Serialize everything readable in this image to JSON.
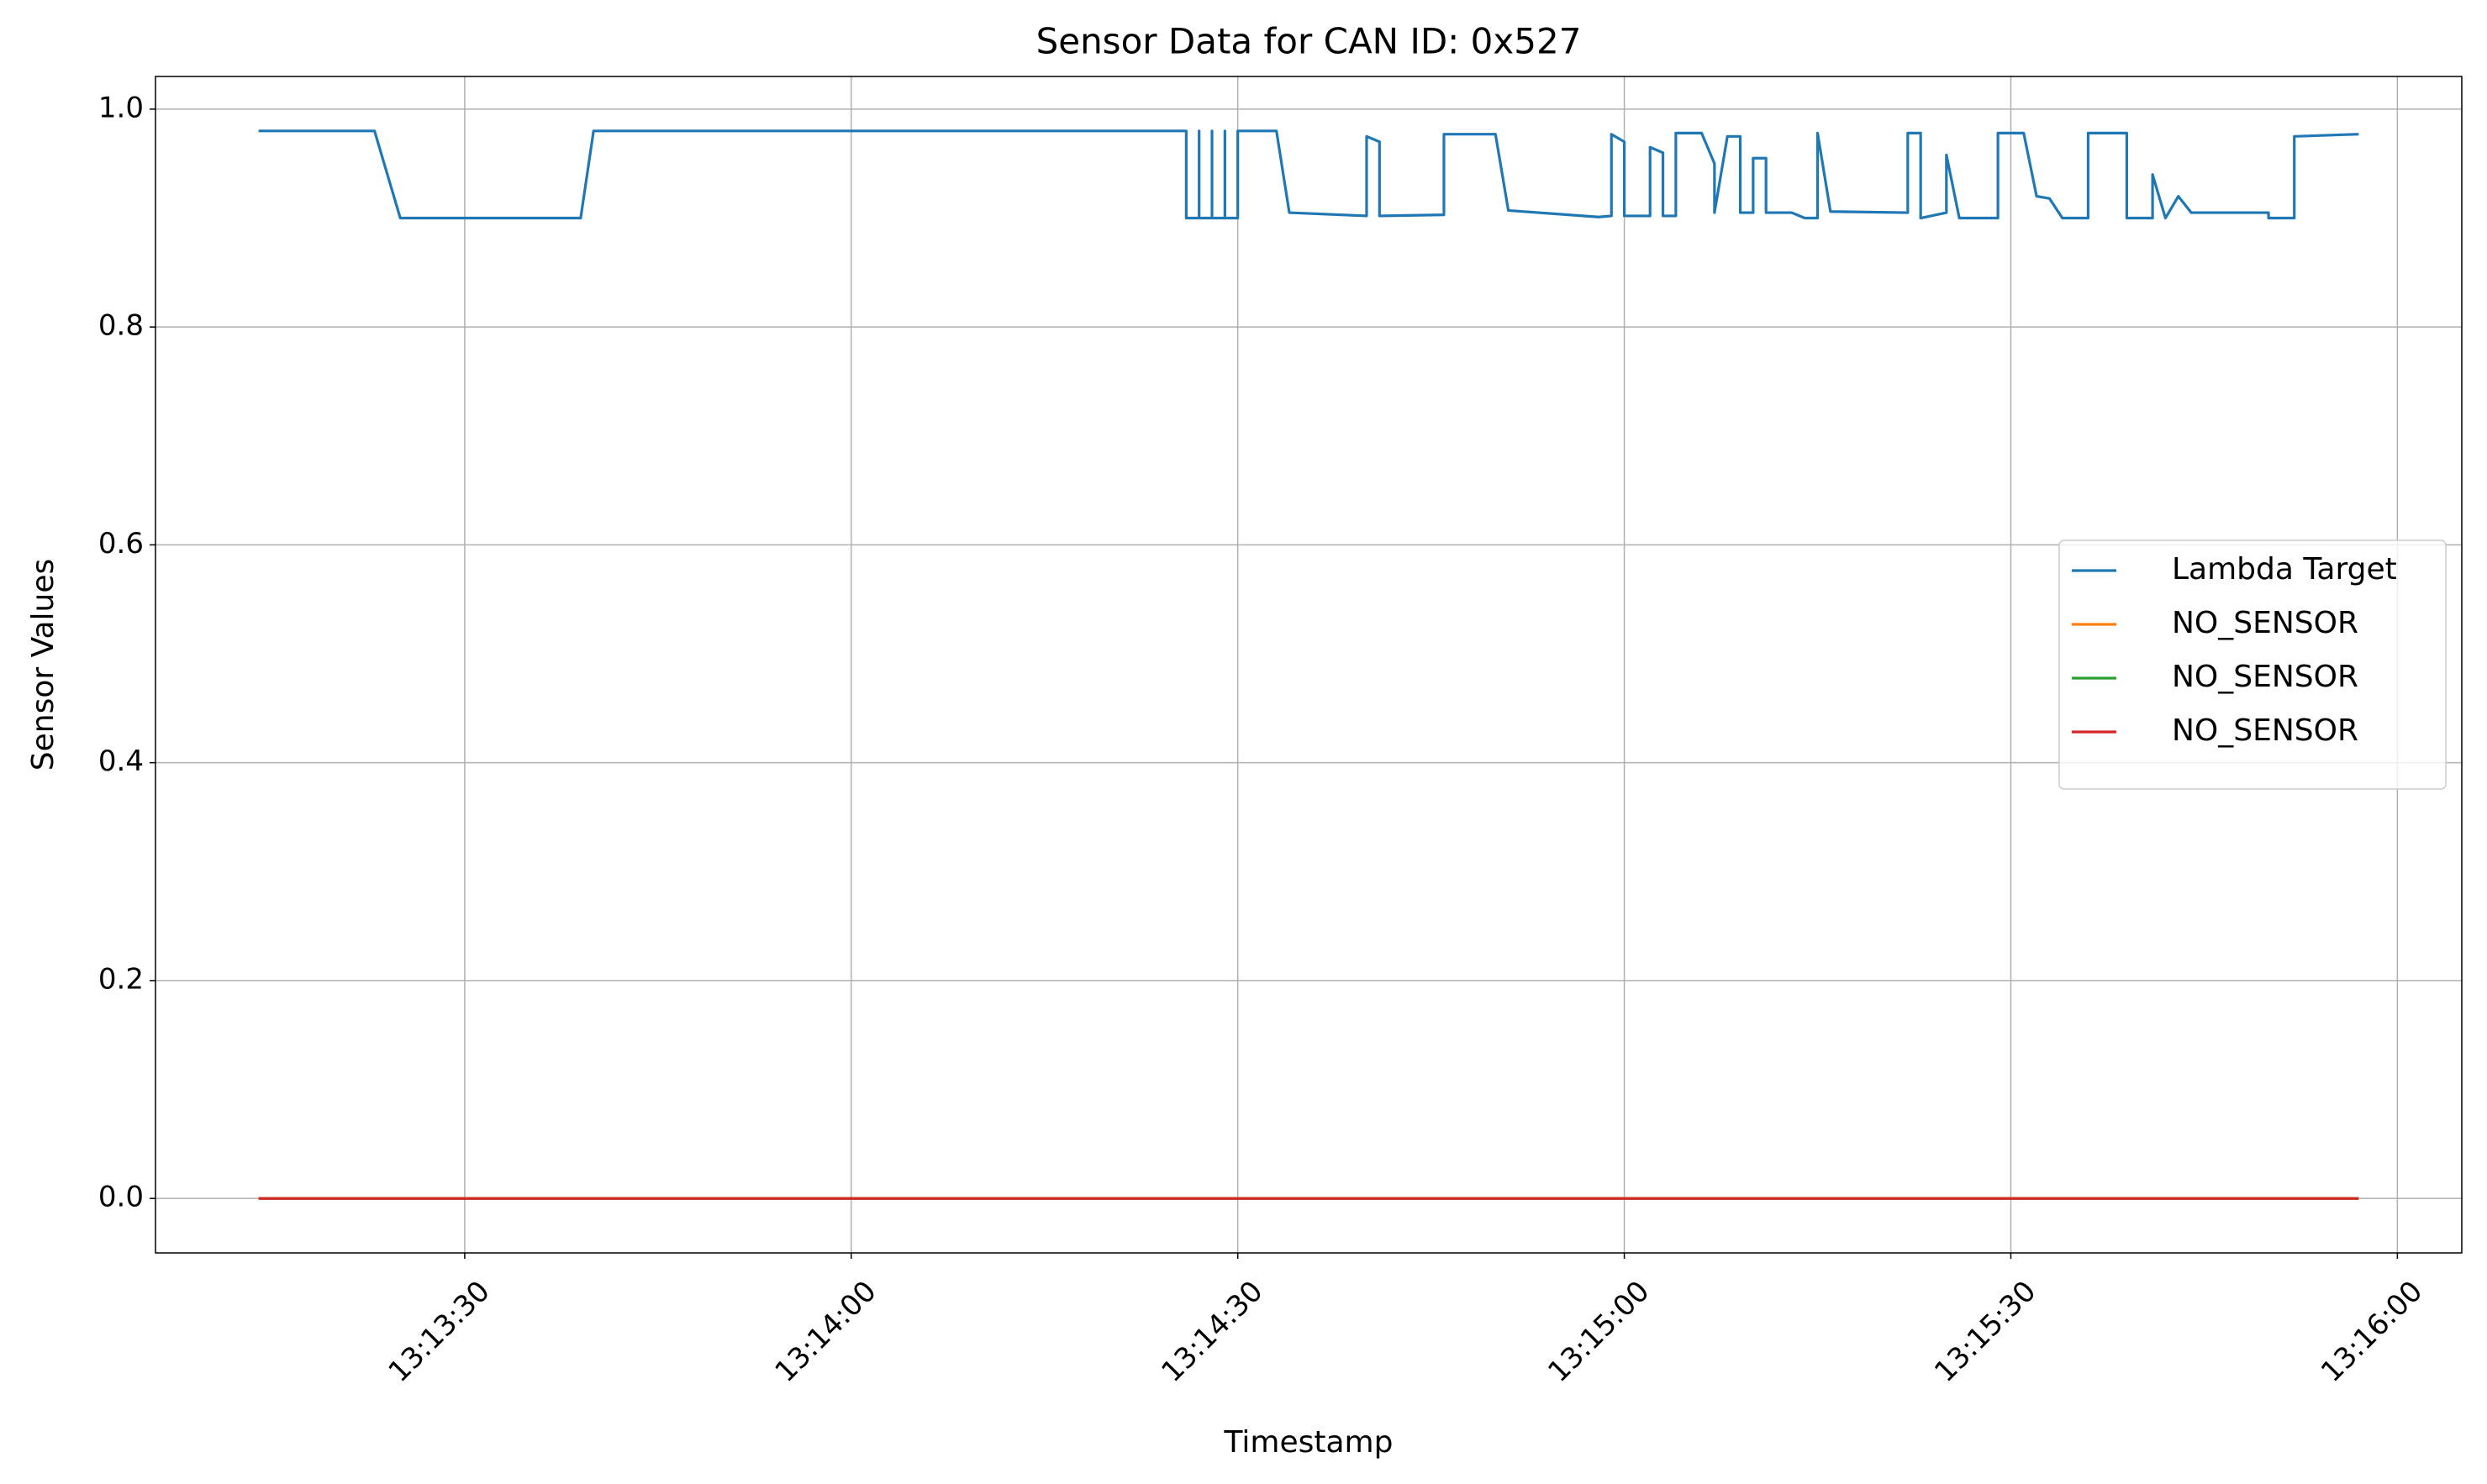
{
  "chart_data": {
    "type": "line",
    "title": "Sensor Data for CAN ID: 0x527",
    "xlabel": "Timestamp",
    "ylabel": "Sensor Values",
    "xlim": [
      "13:13:06",
      "13:16:05"
    ],
    "xticks": [
      "13:13:30",
      "13:14:00",
      "13:14:30",
      "13:15:00",
      "13:15:30",
      "13:16:00"
    ],
    "ylim": [
      -0.05,
      1.03
    ],
    "yticks": [
      {
        "value": 0,
        "label": "0.0"
      },
      0.2,
      0.4,
      0.6,
      0.8,
      {
        "value": 1,
        "label": "1.0"
      }
    ],
    "grid": true,
    "legend": "center right",
    "series": [
      {
        "name": "Lambda Target",
        "color": "#1f77b4",
        "x": [
          "13:13:14",
          "13:13:23",
          "13:13:25",
          "13:13:39",
          "13:13:40",
          "13:14:26",
          "13:14:26",
          "13:14:27",
          "13:14:27",
          "13:14:27",
          "13:14:28",
          "13:14:28",
          "13:14:28",
          "13:14:29",
          "13:14:29",
          "13:14:29",
          "13:14:30",
          "13:14:30",
          "13:14:33",
          "13:14:34",
          "13:14:40",
          "13:14:40",
          "13:14:41",
          "13:14:41",
          "13:14:46",
          "13:14:46",
          "13:14:50",
          "13:14:51",
          "13:14:58",
          "13:14:59",
          "13:14:59",
          "13:15:00",
          "13:15:00",
          "13:15:02",
          "13:15:02",
          "13:15:03",
          "13:15:03",
          "13:15:04",
          "13:15:04",
          "13:15:06",
          "13:15:07",
          "13:15:07",
          "13:15:08",
          "13:15:09",
          "13:15:09",
          "13:15:10",
          "13:15:10",
          "13:15:11",
          "13:15:11",
          "13:15:13",
          "13:15:14",
          "13:15:15",
          "13:15:15",
          "13:15:16",
          "13:15:22",
          "13:15:22",
          "13:15:23",
          "13:15:23",
          "13:15:25",
          "13:15:25",
          "13:15:26",
          "13:15:29",
          "13:15:29",
          "13:15:31",
          "13:15:32",
          "13:15:33",
          "13:15:34",
          "13:15:36",
          "13:15:36",
          "13:15:39",
          "13:15:39",
          "13:15:41",
          "13:15:41",
          "13:15:42",
          "13:15:43",
          "13:15:44",
          "13:15:50",
          "13:15:50",
          "13:15:52",
          "13:15:52",
          "13:15:57"
        ],
        "values": [
          0.98,
          0.98,
          0.9,
          0.9,
          0.98,
          0.98,
          0.9,
          0.9,
          0.98,
          0.9,
          0.9,
          0.98,
          0.9,
          0.9,
          0.98,
          0.9,
          0.9,
          0.98,
          0.98,
          0.905,
          0.902,
          0.975,
          0.97,
          0.902,
          0.903,
          0.977,
          0.977,
          0.907,
          0.901,
          0.902,
          0.977,
          0.97,
          0.902,
          0.902,
          0.965,
          0.96,
          0.902,
          0.902,
          0.978,
          0.978,
          0.95,
          0.905,
          0.975,
          0.975,
          0.905,
          0.905,
          0.955,
          0.955,
          0.905,
          0.905,
          0.9,
          0.9,
          0.978,
          0.906,
          0.905,
          0.978,
          0.978,
          0.9,
          0.905,
          0.958,
          0.9,
          0.9,
          0.978,
          0.978,
          0.92,
          0.918,
          0.9,
          0.9,
          0.978,
          0.978,
          0.9,
          0.9,
          0.94,
          0.9,
          0.92,
          0.905,
          0.905,
          0.9,
          0.9,
          0.975,
          0.977
        ]
      },
      {
        "name": "NO_SENSOR",
        "color": "#ff7f0e",
        "x": [
          "13:13:14",
          "13:15:57"
        ],
        "values": [
          0,
          0
        ]
      },
      {
        "name": "NO_SENSOR",
        "color": "#2ca02c",
        "x": [
          "13:13:14",
          "13:15:57"
        ],
        "values": [
          0,
          0
        ]
      },
      {
        "name": "NO_SENSOR",
        "color": "#d62728",
        "x": [
          "13:13:14",
          "13:15:57"
        ],
        "values": [
          0,
          0
        ]
      }
    ]
  }
}
